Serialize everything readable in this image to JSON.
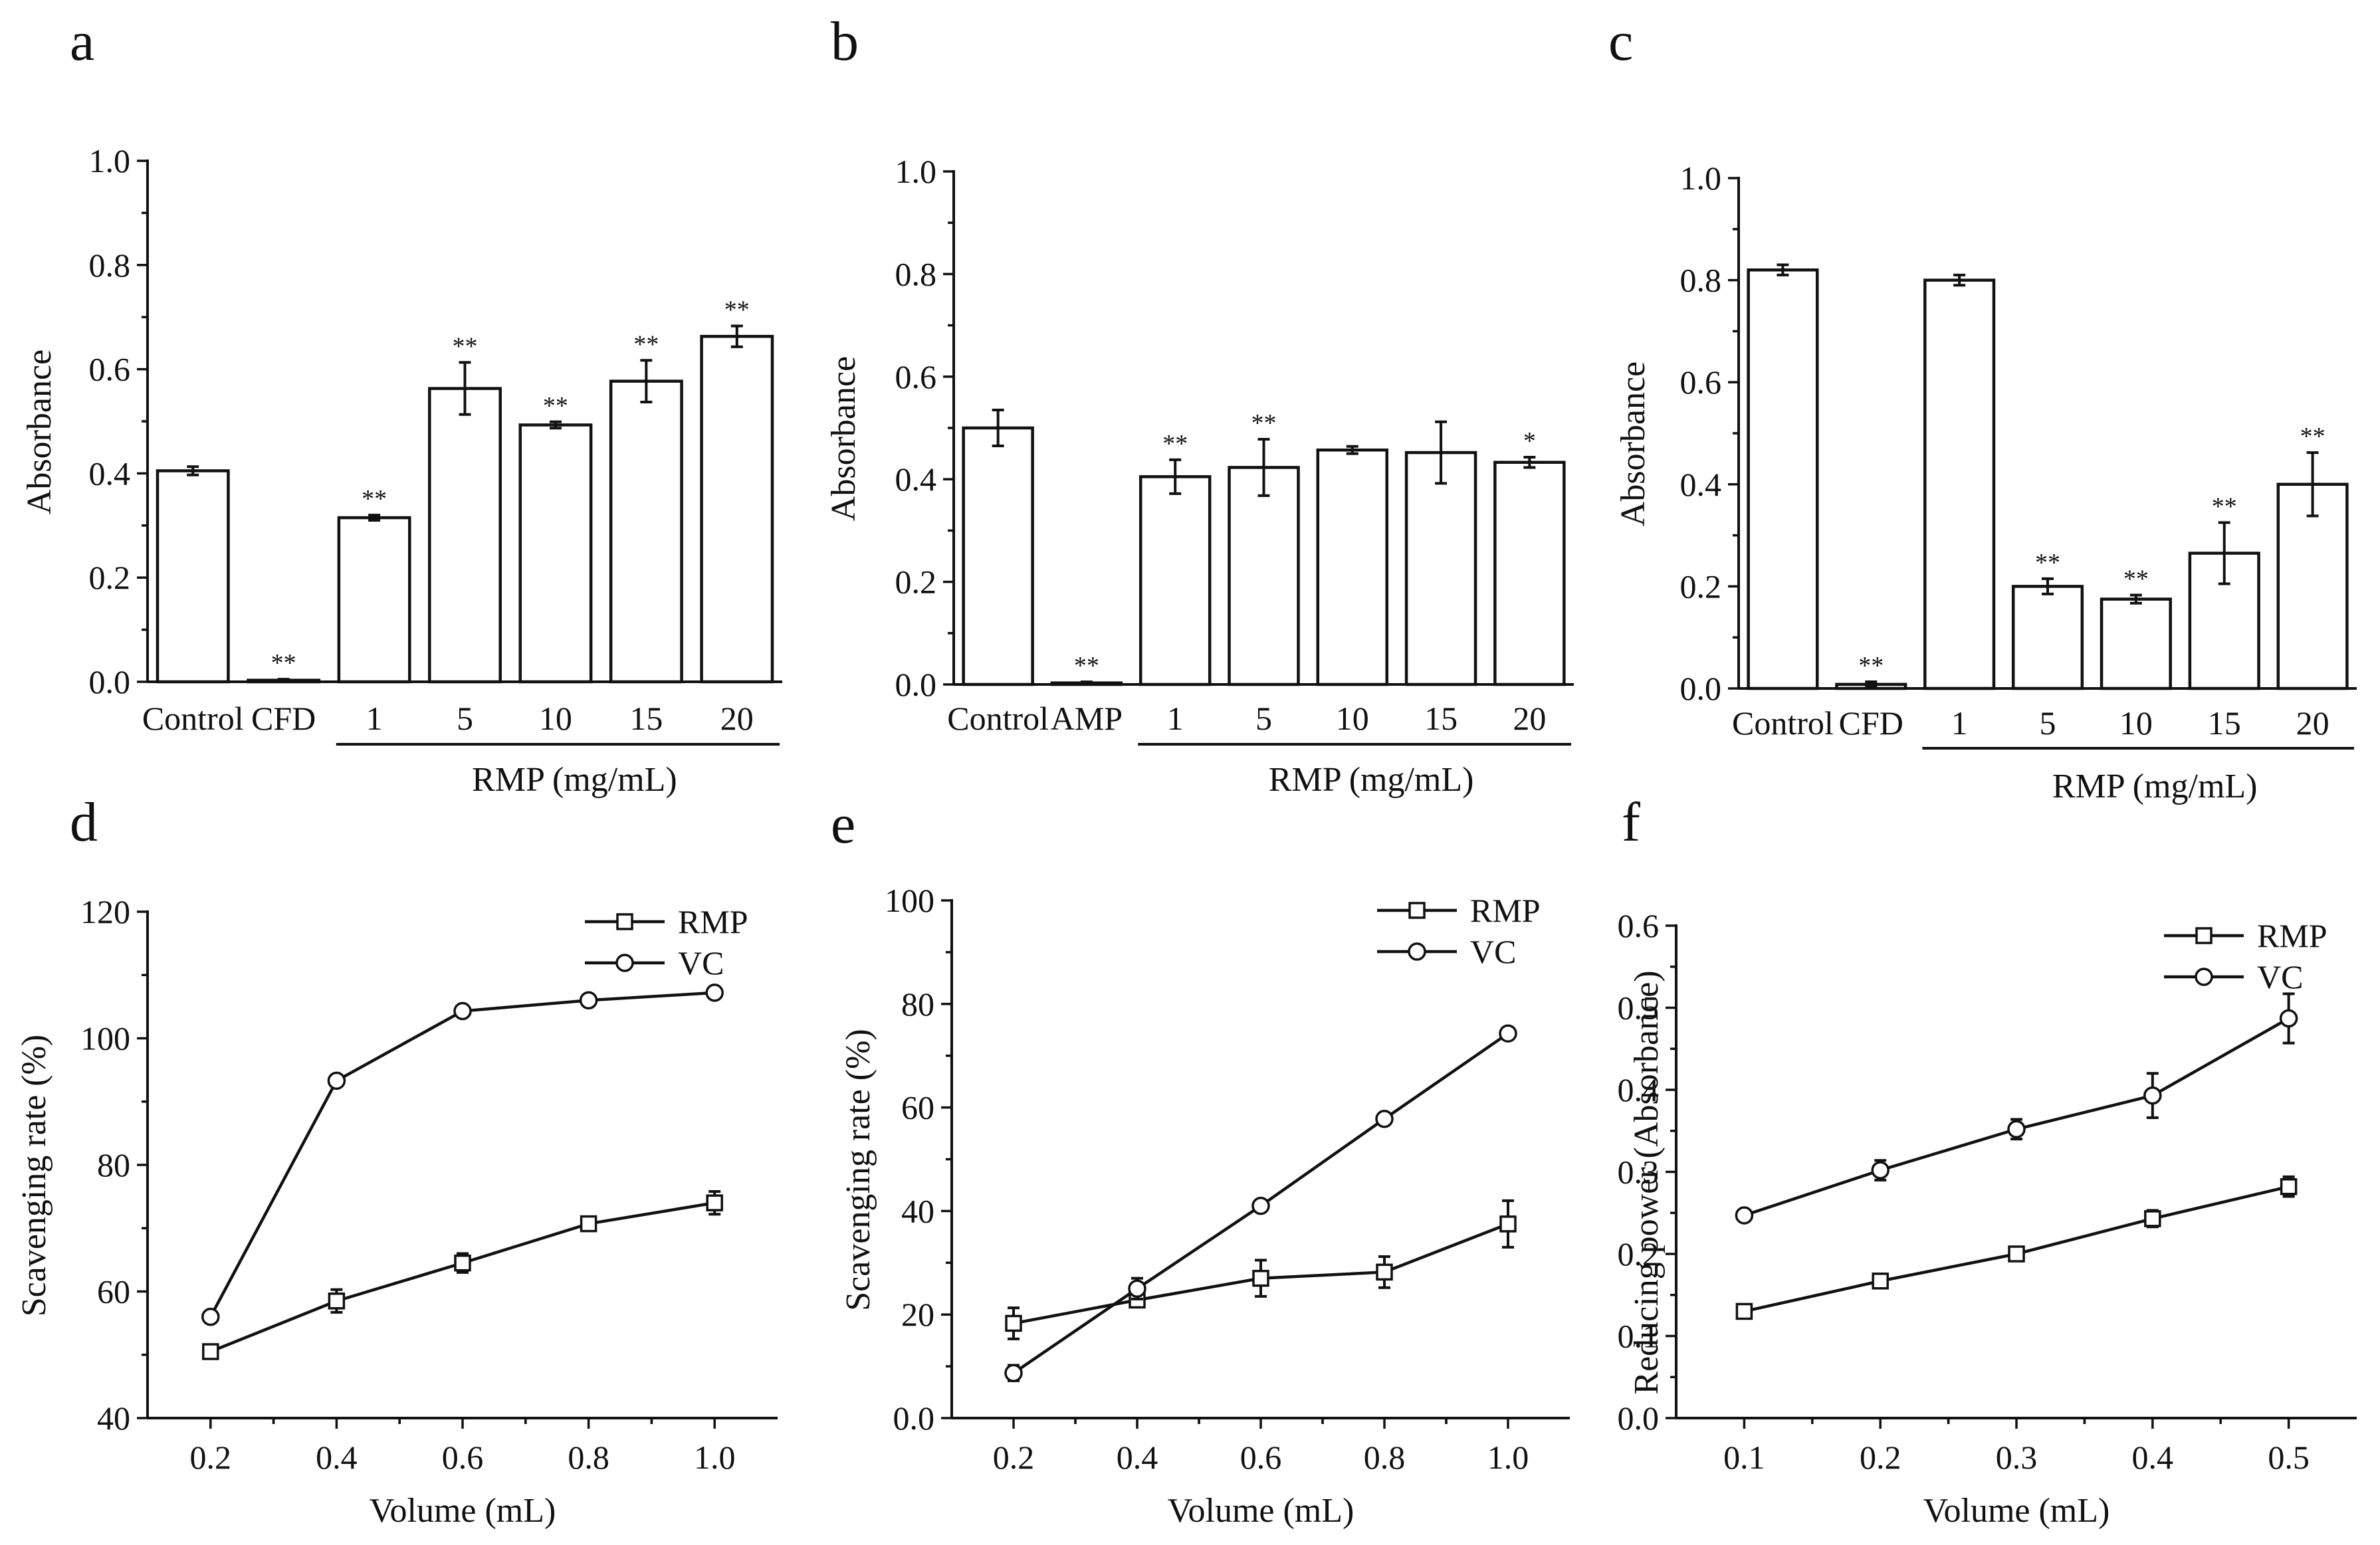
{
  "chart_data": [
    {
      "id": "a",
      "type": "bar",
      "panel_label": "a",
      "categories": [
        "Control",
        "CFD",
        "1",
        "5",
        "10",
        "15",
        "20"
      ],
      "values": [
        0.405,
        0.003,
        0.315,
        0.563,
        0.493,
        0.577,
        0.663
      ],
      "errors": [
        0.008,
        0.002,
        0.005,
        0.05,
        0.006,
        0.04,
        0.02
      ],
      "significance": [
        "",
        "**",
        "**",
        "**",
        "**",
        "**",
        "**"
      ],
      "ylabel": "Absorbance",
      "xlabel": "",
      "group_label": "RMP (mg/mL)",
      "ylim": [
        0,
        1.0
      ],
      "yticks": [
        "0.0",
        "0.2",
        "0.4",
        "0.6",
        "0.8",
        "1.0"
      ]
    },
    {
      "id": "b",
      "type": "bar",
      "panel_label": "b",
      "categories": [
        "Control",
        "AMP",
        "1",
        "5",
        "10",
        "15",
        "20"
      ],
      "values": [
        0.5,
        0.003,
        0.405,
        0.423,
        0.457,
        0.452,
        0.433
      ],
      "errors": [
        0.035,
        0.002,
        0.033,
        0.055,
        0.007,
        0.06,
        0.01
      ],
      "significance": [
        "",
        "**",
        "**",
        "**",
        "",
        "",
        "*"
      ],
      "ylabel": "Absorbance",
      "xlabel": "",
      "group_label": "RMP (mg/mL)",
      "ylim": [
        0,
        1.0
      ],
      "yticks": [
        "0.0",
        "0.2",
        "0.4",
        "0.6",
        "0.8",
        "1.0"
      ]
    },
    {
      "id": "c",
      "type": "bar",
      "panel_label": "c",
      "categories": [
        "Control",
        "CFD",
        "1",
        "5",
        "10",
        "15",
        "20"
      ],
      "values": [
        0.82,
        0.008,
        0.8,
        0.2,
        0.175,
        0.265,
        0.4
      ],
      "errors": [
        0.01,
        0.005,
        0.01,
        0.015,
        0.008,
        0.06,
        0.062
      ],
      "significance": [
        "",
        "**",
        "",
        "**",
        "**",
        "**",
        "**"
      ],
      "ylabel": "Absorbance",
      "xlabel": "",
      "group_label": "RMP (mg/mL)",
      "ylim": [
        0,
        1.0
      ],
      "yticks": [
        "0.0",
        "0.2",
        "0.4",
        "0.6",
        "0.8",
        "1.0"
      ]
    },
    {
      "id": "d",
      "type": "line",
      "panel_label": "d",
      "x": [
        0.2,
        0.4,
        0.6,
        0.8,
        1.0
      ],
      "series": [
        {
          "name": "RMP",
          "marker": "square",
          "values": [
            50.5,
            58.5,
            64.5,
            70.7,
            74.0
          ],
          "errors": [
            0.8,
            1.8,
            1.5,
            1.0,
            1.8
          ]
        },
        {
          "name": "VC",
          "marker": "circle",
          "values": [
            56.0,
            93.3,
            104.3,
            106.0,
            107.2
          ],
          "errors": [
            0.5,
            0.4,
            0.5,
            0.4,
            0.4
          ]
        }
      ],
      "ylabel": "Scavenging rate (%)",
      "xlabel": "Volume (mL)",
      "xlim": [
        0.1,
        1.1
      ],
      "ylim": [
        40,
        120
      ],
      "xticks": [
        "0.2",
        "0.4",
        "0.6",
        "0.8",
        "1.0"
      ],
      "yticks": [
        "40",
        "60",
        "80",
        "100",
        "120"
      ],
      "legend_position": "top-right"
    },
    {
      "id": "e",
      "type": "line",
      "panel_label": "e",
      "x": [
        0.2,
        0.4,
        0.6,
        0.8,
        1.0
      ],
      "series": [
        {
          "name": "RMP",
          "marker": "square",
          "values": [
            18.3,
            22.8,
            27.0,
            28.2,
            37.5
          ],
          "errors": [
            3.0,
            1.0,
            3.5,
            3.0,
            4.5
          ]
        },
        {
          "name": "VC",
          "marker": "circle",
          "values": [
            8.7,
            25.0,
            41.0,
            57.8,
            74.3
          ],
          "errors": [
            1.5,
            2.0,
            1.0,
            1.0,
            1.0
          ]
        }
      ],
      "ylabel": "Scavenging rate (%)",
      "xlabel": "Volume (mL)",
      "xlim": [
        0.1,
        1.1
      ],
      "ylim": [
        0,
        100
      ],
      "xticks": [
        "0.2",
        "0.4",
        "0.6",
        "0.8",
        "1.0"
      ],
      "yticks": [
        "0.0",
        "20",
        "40",
        "60",
        "80",
        "100"
      ],
      "legend_position": "top-right"
    },
    {
      "id": "f",
      "type": "line",
      "panel_label": "f",
      "x": [
        0.1,
        0.2,
        0.3,
        0.4,
        0.5
      ],
      "series": [
        {
          "name": "RMP",
          "marker": "square",
          "values": [
            0.13,
            0.167,
            0.2,
            0.243,
            0.282
          ],
          "errors": [
            0.005,
            0.005,
            0.005,
            0.01,
            0.012
          ]
        },
        {
          "name": "VC",
          "marker": "circle",
          "values": [
            0.247,
            0.302,
            0.352,
            0.393,
            0.487
          ],
          "errors": [
            0.005,
            0.012,
            0.012,
            0.027,
            0.03
          ]
        }
      ],
      "ylabel": "Reducing power (Absorbance)",
      "xlabel": "Volume (mL)",
      "xlim": [
        0.05,
        0.55
      ],
      "ylim": [
        0,
        0.6
      ],
      "xticks": [
        "0.1",
        "0.2",
        "0.3",
        "0.4",
        "0.5"
      ],
      "yticks": [
        "0.0",
        "0.1",
        "0.2",
        "0.3",
        "0.4",
        "0.5",
        "0.6"
      ],
      "legend_position": "top-right"
    }
  ]
}
